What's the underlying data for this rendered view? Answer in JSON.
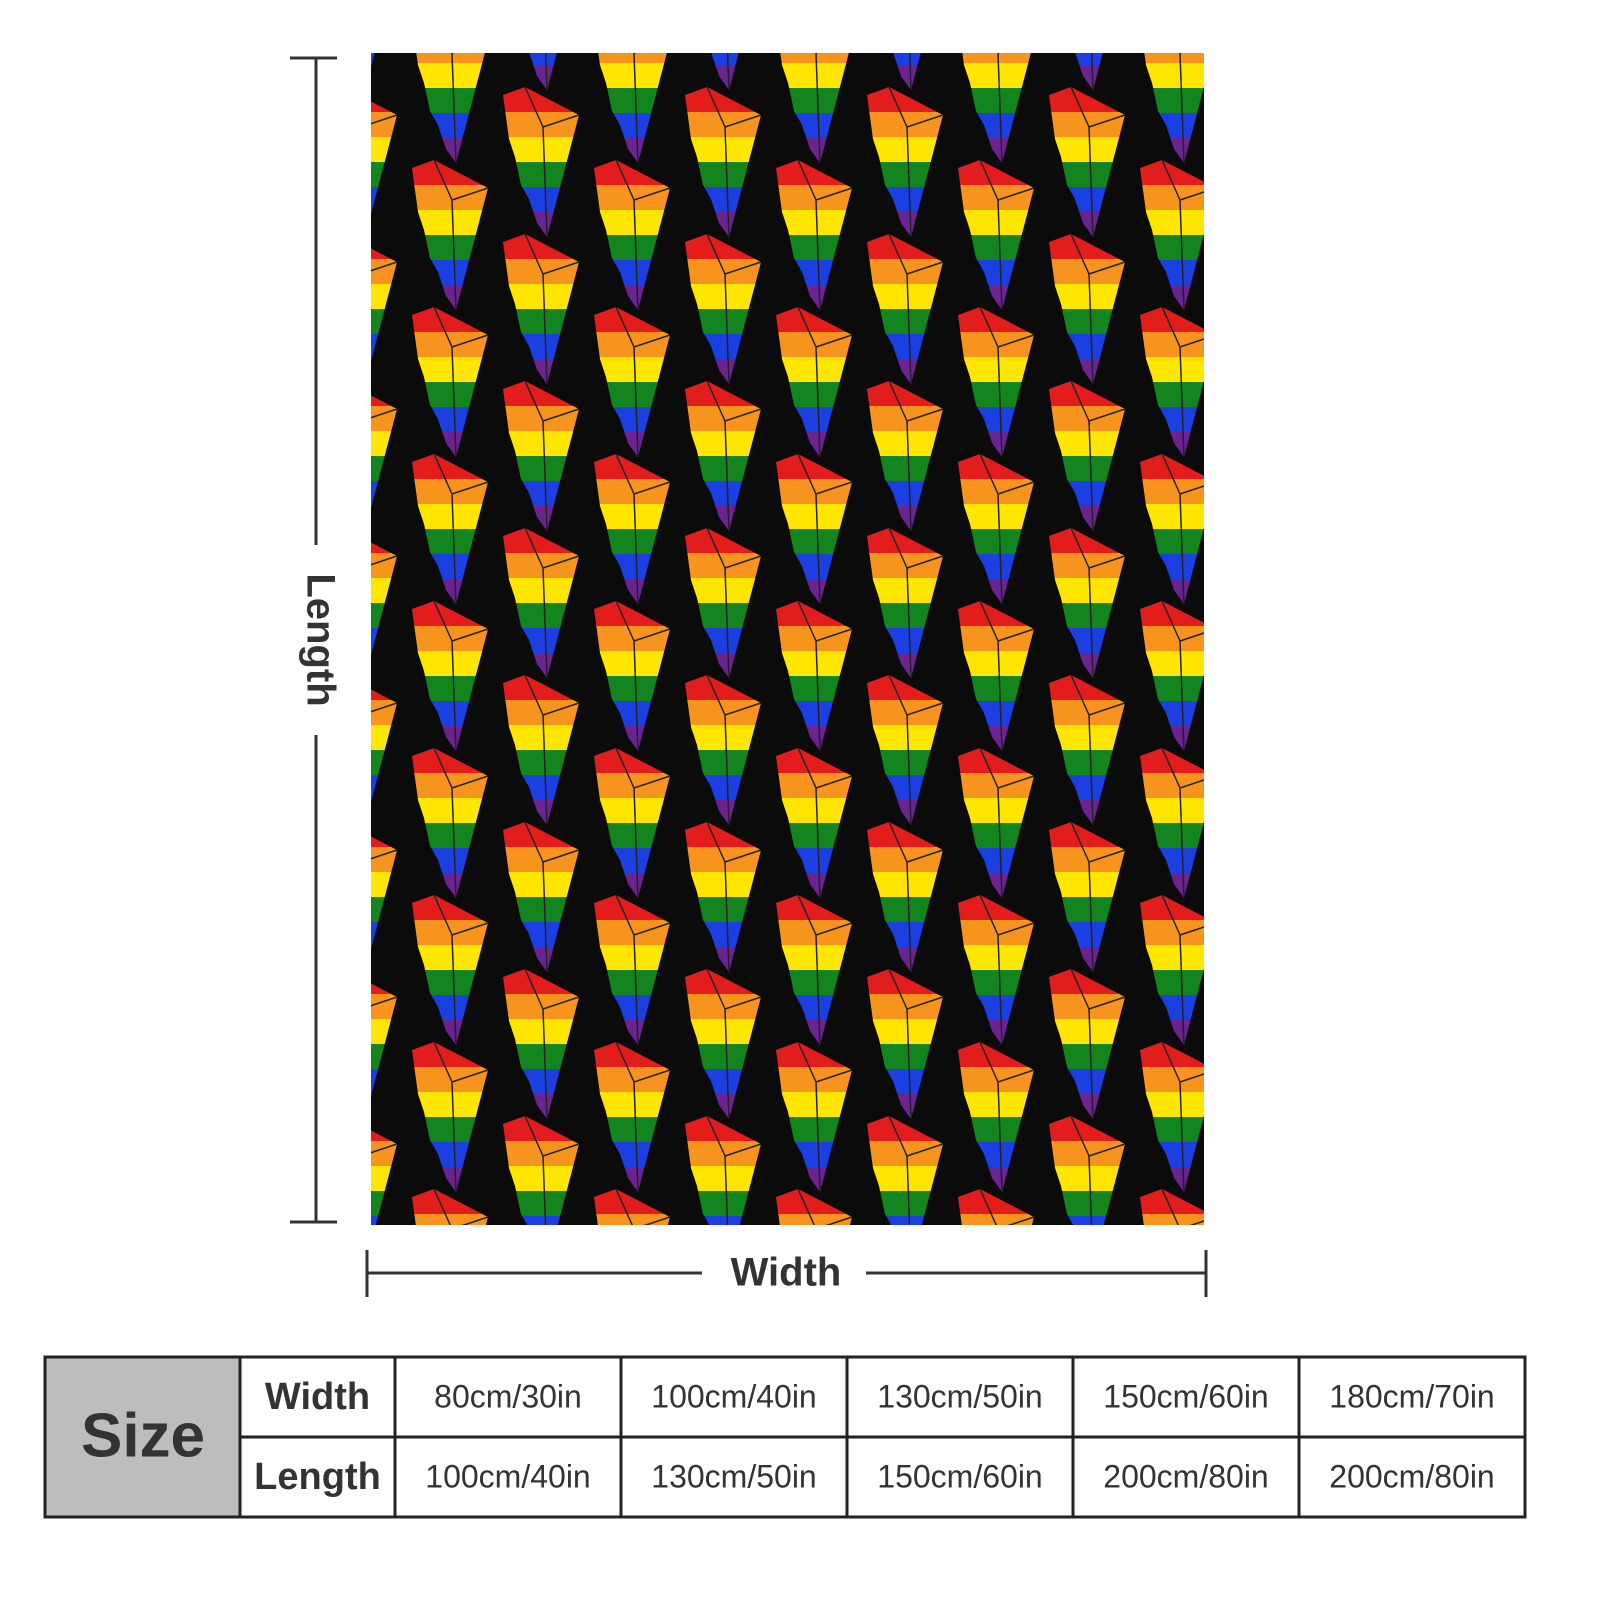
{
  "dimensions": {
    "length_label": "Length",
    "width_label": "Width"
  },
  "table": {
    "header": "Size",
    "rows": [
      {
        "label": "Width",
        "cells": [
          "80cm/30in",
          "100cm/40in",
          "130cm/50in",
          "150cm/60in",
          "180cm/70in"
        ]
      },
      {
        "label": "Length",
        "cells": [
          "100cm/40in",
          "130cm/50in",
          "150cm/60in",
          "200cm/80in",
          "200cm/80in"
        ]
      }
    ]
  }
}
